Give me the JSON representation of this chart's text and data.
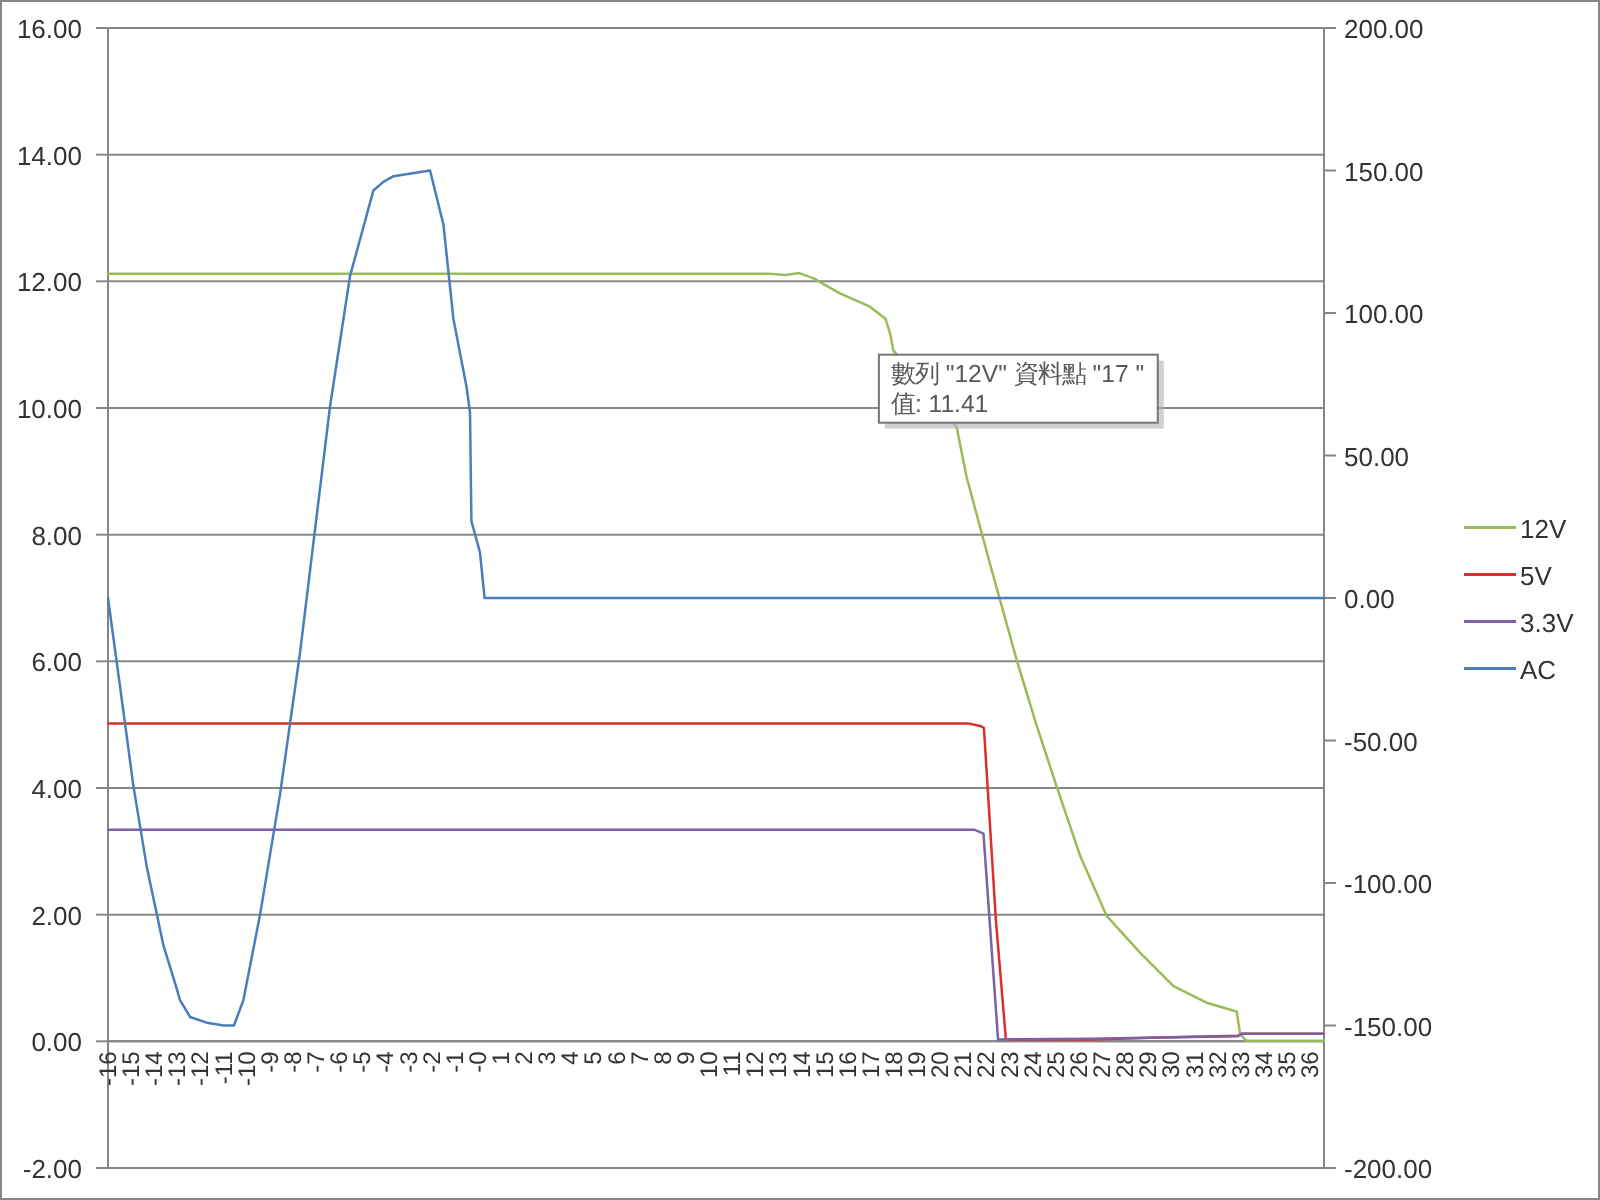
{
  "chart_data": {
    "type": "line",
    "xlim": [
      -16,
      36.6
    ],
    "xticks": [
      -16,
      -15,
      -14,
      -13,
      -12,
      -11,
      -10,
      -9,
      -8,
      -7,
      -6,
      -5,
      -4,
      -3,
      -2,
      -1,
      {
        "value": 0,
        "label": "-0"
      },
      1,
      2,
      3,
      4,
      5,
      6,
      7,
      8,
      9,
      10,
      11,
      12,
      13,
      14,
      15,
      16,
      17,
      18,
      19,
      20,
      21,
      22,
      23,
      24,
      25,
      26,
      27,
      28,
      29,
      30,
      31,
      32,
      33,
      34,
      35,
      36
    ],
    "ylim": [
      -2,
      16
    ],
    "yticks": [
      {
        "value": -2,
        "label": "-2.00"
      },
      {
        "value": 0,
        "label": "0.00"
      },
      {
        "value": 2,
        "label": "2.00"
      },
      {
        "value": 4,
        "label": "4.00"
      },
      {
        "value": 6,
        "label": "6.00"
      },
      {
        "value": 8,
        "label": "8.00"
      },
      {
        "value": 10,
        "label": "10.00"
      },
      {
        "value": 12,
        "label": "12.00"
      },
      {
        "value": 14,
        "label": "14.00"
      },
      {
        "value": 16,
        "label": "16.00"
      }
    ],
    "y2lim": [
      -200,
      200
    ],
    "y2ticks": [
      {
        "value": -200,
        "label": "-200.00"
      },
      {
        "value": -150,
        "label": "-150.00"
      },
      {
        "value": -100,
        "label": "-100.00"
      },
      {
        "value": -50,
        "label": "-50.00"
      },
      {
        "value": 0,
        "label": "0.00"
      },
      {
        "value": 50,
        "label": "50.00"
      },
      {
        "value": 100,
        "label": "100.00"
      },
      {
        "value": 150,
        "label": "150.00"
      },
      {
        "value": 200,
        "label": "200.00"
      }
    ],
    "grid": "y",
    "legend": "right",
    "annotations": [
      {
        "text": "數列 \"12V\" 資料點 \"17 \"\n值: 11.41",
        "x": 17,
        "y": 11.41
      }
    ],
    "series": [
      {
        "name": "12V",
        "color": "#9bbb59",
        "x": [
          -16,
          12.6,
          13.3,
          13.9,
          14.5,
          15.66,
          16.96,
          17.63,
          17.83,
          17.97,
          20.71,
          21.14,
          22.15,
          23.3,
          24.14,
          25.03,
          26.05,
          27.2,
          28.64,
          30.09,
          31.52,
          32.82,
          32.97,
          33.23,
          36.6
        ],
        "values": [
          12.12,
          12.12,
          12.1,
          12.13,
          12.05,
          11.81,
          11.6,
          11.41,
          11.18,
          10.91,
          9.7,
          8.91,
          7.54,
          6.03,
          5.02,
          4.03,
          2.93,
          1.98,
          1.4,
          0.87,
          0.61,
          0.47,
          0.12,
          0.01,
          0.01
        ]
      },
      {
        "name": "5V",
        "color": "#d9302c",
        "x": [
          -16,
          21.2,
          21.72,
          21.89,
          22.41,
          22.84,
          26.48,
          29.5,
          32.88,
          33.05,
          36.6
        ],
        "values": [
          5.02,
          5.02,
          4.98,
          4.95,
          1.9,
          0.03,
          0.03,
          0.06,
          0.09,
          0.12,
          0.12
        ]
      },
      {
        "name": "3.3V",
        "color": "#7b62a6",
        "x": [
          -16,
          21.5,
          21.87,
          22.5,
          26.48,
          29.5,
          32.88,
          33.05,
          36.6
        ],
        "values": [
          3.34,
          3.34,
          3.28,
          0.03,
          0.04,
          0.06,
          0.08,
          0.12,
          0.12
        ]
      },
      {
        "name": "AC",
        "color": "#4a7ebb",
        "axis": "y2",
        "x": [
          -16,
          -15.48,
          -14.9,
          -14.33,
          -13.6,
          -13.03,
          -12.89,
          -12.45,
          -11.73,
          -11.0,
          -10.55,
          -10.14,
          -9.42,
          -8.56,
          -7.69,
          -6.4,
          -5.53,
          -4.52,
          -4.09,
          -3.65,
          -2.07,
          -1.49,
          -1.06,
          -0.49,
          -0.34,
          -0.28,
          0.09,
          0.29,
          36.6
        ],
        "values": [
          0,
          -31,
          -66,
          -94,
          -122,
          -137,
          -141,
          -147,
          -149,
          -150,
          -150,
          -141,
          -111,
          -69,
          -19,
          67,
          113,
          143,
          146,
          148,
          150,
          131,
          98,
          74,
          65,
          27,
          16,
          0,
          0
        ]
      }
    ]
  }
}
